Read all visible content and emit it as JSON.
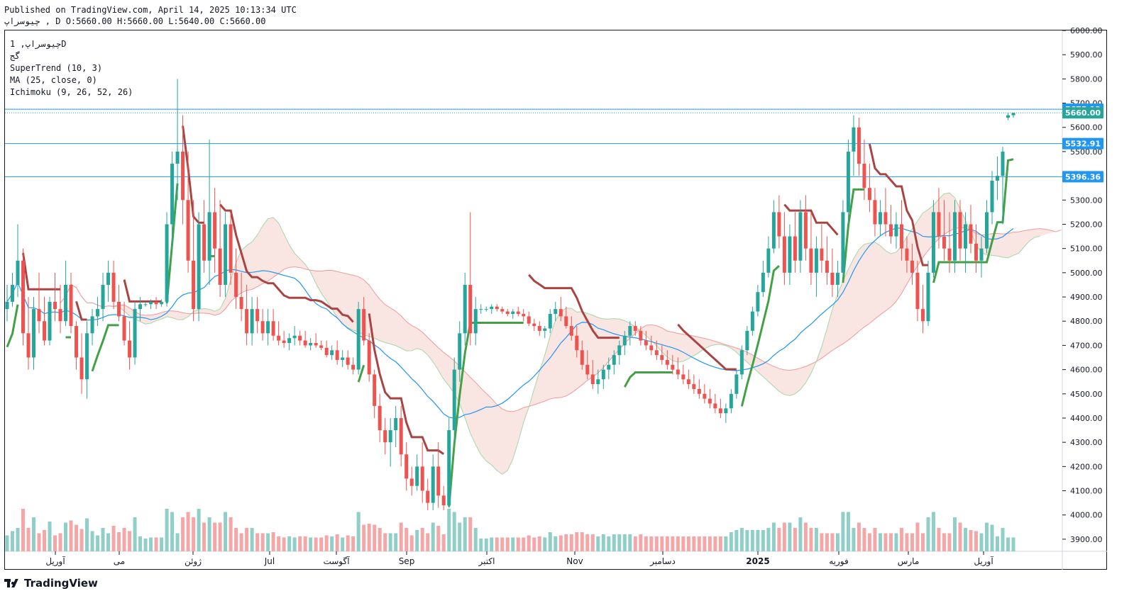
{
  "header": {
    "published": "Published on TradingView.com, April 14, 2025 10:13:34 UTC",
    "ohlc": "چیوسراپ , D O:5660.00 H:5660.00 L:5640.00 C:5660.00"
  },
  "legend": {
    "symbol": "چیوسراپ, 1D",
    "subtitle": "گج",
    "supertrend": "SuperTrend (10, 3)",
    "ma": "MA (25, close, 0)",
    "ichimoku": "Ichimoku (9, 26, 52, 26)"
  },
  "brand": {
    "name": "TradingView",
    "icon": "tradingview-logo-icon"
  },
  "colors": {
    "up": "#26a69a",
    "down": "#ef5350",
    "supertrend_up": "#43a047",
    "supertrend_down": "#a94442",
    "ma": "#2196f3",
    "cloud_bull": "#d7f0d8",
    "cloud_bear": "#fadad8",
    "hline": "#2196f3",
    "last_price": "#26a69a"
  },
  "chart_data": {
    "type": "candlestick",
    "ylim": [
      3850,
      6000
    ],
    "yticks": [
      3900,
      4000,
      4100,
      4200,
      4300,
      4400,
      4500,
      4600,
      4700,
      4800,
      4900,
      5000,
      5100,
      5200,
      5300,
      5400,
      5500,
      5600,
      5700,
      5800,
      5900,
      6000
    ],
    "price_labels": [
      {
        "value": 5675.12,
        "label": "5675.12",
        "kind": "line"
      },
      {
        "value": 5660.0,
        "label": "5660.00",
        "kind": "last"
      },
      {
        "value": 5532.91,
        "label": "5532.91",
        "kind": "line"
      },
      {
        "value": 5396.36,
        "label": "5396.36",
        "kind": "line"
      }
    ],
    "x_labels": [
      "آوریل",
      "می",
      "ژوئن",
      "Jul",
      "آگوست",
      "Sep",
      "اکتبر",
      "Nov",
      "دسامبر",
      "2025",
      "فوریه",
      "مارس",
      "آوریل"
    ],
    "ohlc": [
      [
        4850,
        4950,
        4800,
        4880
      ],
      [
        4880,
        5000,
        4860,
        4950
      ],
      [
        4950,
        5200,
        4900,
        5050
      ],
      [
        5050,
        5100,
        4700,
        4750
      ],
      [
        4750,
        4900,
        4600,
        4650
      ],
      [
        4650,
        4900,
        4600,
        4850
      ],
      [
        4850,
        5000,
        4750,
        4800
      ],
      [
        4800,
        4900,
        4700,
        4720
      ],
      [
        4720,
        4900,
        4700,
        4880
      ],
      [
        4880,
        5000,
        4800,
        4850
      ],
      [
        4850,
        4950,
        4750,
        4800
      ],
      [
        4800,
        5050,
        4780,
        4950
      ],
      [
        4950,
        5000,
        4750,
        4780
      ],
      [
        4780,
        4800,
        4600,
        4650
      ],
      [
        4650,
        4750,
        4500,
        4560
      ],
      [
        4560,
        4800,
        4480,
        4750
      ],
      [
        4750,
        4850,
        4700,
        4820
      ],
      [
        4820,
        4900,
        4780,
        4850
      ],
      [
        4850,
        5000,
        4800,
        4950
      ],
      [
        4950,
        5050,
        4880,
        5000
      ],
      [
        5000,
        5050,
        4850,
        4880
      ],
      [
        4880,
        4950,
        4800,
        4820
      ],
      [
        4820,
        4880,
        4700,
        4720
      ],
      [
        4720,
        4800,
        4600,
        4650
      ],
      [
        4650,
        4880,
        4620,
        4850
      ],
      [
        4850,
        4900,
        4800,
        4870
      ],
      [
        4870,
        4880,
        4860,
        4870
      ],
      [
        4870,
        4890,
        4850,
        4880
      ],
      [
        4880,
        4900,
        4850,
        4870
      ],
      [
        4870,
        4890,
        4860,
        4880
      ],
      [
        4880,
        5250,
        4860,
        5200
      ],
      [
        5200,
        5500,
        5100,
        5450
      ],
      [
        5450,
        5800,
        5300,
        5500
      ],
      [
        5500,
        5650,
        5200,
        5300
      ],
      [
        5300,
        5500,
        5000,
        5050
      ],
      [
        5050,
        5300,
        4800,
        4850
      ],
      [
        4850,
        5250,
        4800,
        5200
      ],
      [
        5200,
        5300,
        5000,
        5050
      ],
      [
        5050,
        5550,
        4950,
        5250
      ],
      [
        5250,
        5350,
        5000,
        5100
      ],
      [
        5100,
        5300,
        4900,
        4950
      ],
      [
        4950,
        5250,
        4900,
        5200
      ],
      [
        5200,
        5250,
        4950,
        5000
      ],
      [
        5000,
        5100,
        4850,
        4900
      ],
      [
        4900,
        5000,
        4800,
        4850
      ],
      [
        4850,
        4950,
        4700,
        4750
      ],
      [
        4750,
        4900,
        4700,
        4850
      ],
      [
        4850,
        4900,
        4750,
        4800
      ],
      [
        4800,
        4850,
        4720,
        4750
      ],
      [
        4750,
        4850,
        4700,
        4800
      ],
      [
        4800,
        4850,
        4720,
        4740
      ],
      [
        4740,
        4800,
        4700,
        4720
      ],
      [
        4720,
        4760,
        4690,
        4710
      ],
      [
        4710,
        4750,
        4680,
        4730
      ],
      [
        4730,
        4780,
        4700,
        4740
      ],
      [
        4740,
        4760,
        4700,
        4720
      ],
      [
        4720,
        4760,
        4690,
        4700
      ],
      [
        4700,
        4730,
        4680,
        4710
      ],
      [
        4710,
        4750,
        4690,
        4700
      ],
      [
        4700,
        4720,
        4680,
        4690
      ],
      [
        4690,
        4720,
        4650,
        4660
      ],
      [
        4660,
        4700,
        4640,
        4680
      ],
      [
        4680,
        4720,
        4620,
        4640
      ],
      [
        4640,
        4680,
        4610,
        4650
      ],
      [
        4650,
        4680,
        4600,
        4620
      ],
      [
        4620,
        4650,
        4580,
        4600
      ],
      [
        4600,
        4880,
        4580,
        4850
      ],
      [
        4850,
        4900,
        4700,
        4720
      ],
      [
        4720,
        4750,
        4550,
        4580
      ],
      [
        4580,
        4600,
        4400,
        4450
      ],
      [
        4450,
        4500,
        4300,
        4350
      ],
      [
        4350,
        4400,
        4250,
        4300
      ],
      [
        4300,
        4400,
        4200,
        4350
      ],
      [
        4350,
        4450,
        4280,
        4400
      ],
      [
        4400,
        4450,
        4200,
        4250
      ],
      [
        4250,
        4300,
        4100,
        4150
      ],
      [
        4150,
        4200,
        4080,
        4120
      ],
      [
        4120,
        4250,
        4100,
        4200
      ],
      [
        4200,
        4300,
        4050,
        4100
      ],
      [
        4100,
        4150,
        4020,
        4050
      ],
      [
        4050,
        4250,
        4020,
        4200
      ],
      [
        4200,
        4300,
        4030,
        4080
      ],
      [
        4080,
        4120,
        4020,
        4040
      ],
      [
        4040,
        4400,
        4030,
        4350
      ],
      [
        4350,
        4650,
        4300,
        4600
      ],
      [
        4600,
        4800,
        4550,
        4750
      ],
      [
        4750,
        5000,
        4700,
        4950
      ],
      [
        4950,
        5250,
        4700,
        4750
      ],
      [
        4750,
        4900,
        4700,
        4850
      ],
      [
        4850,
        4870,
        4830,
        4850
      ],
      [
        4850,
        4860,
        4840,
        4850
      ],
      [
        4850,
        4870,
        4830,
        4860
      ],
      [
        4860,
        4870,
        4840,
        4850
      ],
      [
        4850,
        4860,
        4830,
        4840
      ],
      [
        4840,
        4850,
        4820,
        4830
      ],
      [
        4830,
        4850,
        4810,
        4840
      ],
      [
        4840,
        4860,
        4820,
        4830
      ],
      [
        4830,
        4850,
        4800,
        4820
      ],
      [
        4820,
        4840,
        4780,
        4790
      ],
      [
        4790,
        4810,
        4760,
        4780
      ],
      [
        4780,
        4800,
        4740,
        4760
      ],
      [
        4760,
        4780,
        4730,
        4770
      ],
      [
        4770,
        4850,
        4750,
        4830
      ],
      [
        4830,
        4880,
        4800,
        4850
      ],
      [
        4850,
        4900,
        4800,
        4820
      ],
      [
        4820,
        4860,
        4770,
        4780
      ],
      [
        4780,
        4820,
        4720,
        4740
      ],
      [
        4740,
        4780,
        4650,
        4680
      ],
      [
        4680,
        4720,
        4600,
        4620
      ],
      [
        4620,
        4680,
        4560,
        4580
      ],
      [
        4580,
        4640,
        4520,
        4540
      ],
      [
        4540,
        4600,
        4500,
        4560
      ],
      [
        4560,
        4620,
        4520,
        4600
      ],
      [
        4600,
        4650,
        4560,
        4620
      ],
      [
        4620,
        4680,
        4580,
        4660
      ],
      [
        4660,
        4720,
        4620,
        4700
      ],
      [
        4700,
        4760,
        4660,
        4740
      ],
      [
        4740,
        4800,
        4700,
        4780
      ],
      [
        4780,
        4800,
        4740,
        4760
      ],
      [
        4760,
        4780,
        4700,
        4720
      ],
      [
        4720,
        4760,
        4680,
        4700
      ],
      [
        4700,
        4740,
        4660,
        4680
      ],
      [
        4680,
        4720,
        4640,
        4660
      ],
      [
        4660,
        4700,
        4620,
        4640
      ],
      [
        4640,
        4680,
        4600,
        4620
      ],
      [
        4620,
        4660,
        4580,
        4600
      ],
      [
        4600,
        4650,
        4560,
        4580
      ],
      [
        4580,
        4620,
        4540,
        4560
      ],
      [
        4560,
        4600,
        4520,
        4540
      ],
      [
        4540,
        4580,
        4500,
        4520
      ],
      [
        4520,
        4560,
        4480,
        4500
      ],
      [
        4500,
        4540,
        4460,
        4480
      ],
      [
        4480,
        4520,
        4440,
        4460
      ],
      [
        4460,
        4500,
        4420,
        4440
      ],
      [
        4440,
        4480,
        4400,
        4420
      ],
      [
        4420,
        4460,
        4380,
        4440
      ],
      [
        4440,
        4520,
        4420,
        4500
      ],
      [
        4500,
        4600,
        4480,
        4580
      ],
      [
        4580,
        4700,
        4560,
        4680
      ],
      [
        4680,
        4780,
        4660,
        4760
      ],
      [
        4760,
        4860,
        4740,
        4840
      ],
      [
        4840,
        4950,
        4820,
        4920
      ],
      [
        4920,
        5050,
        4900,
        5000
      ],
      [
        5000,
        5150,
        4980,
        5100
      ],
      [
        5100,
        5300,
        5080,
        5250
      ],
      [
        5250,
        5320,
        5100,
        5150
      ],
      [
        5150,
        5250,
        4950,
        5000
      ],
      [
        5000,
        5200,
        4950,
        5150
      ],
      [
        5150,
        5250,
        5000,
        5050
      ],
      [
        5050,
        5300,
        5000,
        5250
      ],
      [
        5250,
        5320,
        5050,
        5100
      ],
      [
        5100,
        5250,
        4950,
        5000
      ],
      [
        5000,
        5150,
        4900,
        5100
      ],
      [
        5100,
        5200,
        5000,
        5050
      ],
      [
        5050,
        5150,
        4950,
        5000
      ],
      [
        5000,
        5100,
        4900,
        4950
      ],
      [
        4950,
        5050,
        4900,
        5000
      ],
      [
        5000,
        5300,
        4980,
        5250
      ],
      [
        5250,
        5550,
        5200,
        5500
      ],
      [
        5500,
        5650,
        5400,
        5600
      ],
      [
        5600,
        5640,
        5400,
        5450
      ],
      [
        5450,
        5550,
        5300,
        5350
      ],
      [
        5350,
        5450,
        5250,
        5300
      ],
      [
        5300,
        5350,
        5150,
        5200
      ],
      [
        5200,
        5300,
        5150,
        5250
      ],
      [
        5250,
        5350,
        5150,
        5200
      ],
      [
        5200,
        5280,
        5120,
        5150
      ],
      [
        5150,
        5250,
        5100,
        5200
      ],
      [
        5200,
        5300,
        5050,
        5100
      ],
      [
        5100,
        5150,
        5000,
        5050
      ],
      [
        5050,
        5120,
        4950,
        5000
      ],
      [
        5000,
        5050,
        4800,
        4850
      ],
      [
        4850,
        4950,
        4750,
        4800
      ],
      [
        4800,
        5050,
        4780,
        5000
      ],
      [
        5000,
        5300,
        4980,
        5250
      ],
      [
        5250,
        5350,
        5100,
        5150
      ],
      [
        5150,
        5300,
        5050,
        5100
      ],
      [
        5100,
        5250,
        5000,
        5050
      ],
      [
        5050,
        5300,
        5000,
        5250
      ],
      [
        5250,
        5300,
        5050,
        5100
      ],
      [
        5100,
        5250,
        5000,
        5200
      ],
      [
        5200,
        5280,
        5080,
        5120
      ],
      [
        5120,
        5200,
        5000,
        5050
      ],
      [
        5050,
        5150,
        4980,
        5100
      ],
      [
        5100,
        5300,
        5080,
        5250
      ],
      [
        5250,
        5420,
        5200,
        5380
      ],
      [
        5380,
        5480,
        5300,
        5400
      ],
      [
        5400,
        5520,
        5200,
        5500
      ],
      [
        5640,
        5660,
        5630,
        5650
      ],
      [
        5650,
        5660,
        5640,
        5660
      ]
    ]
  }
}
